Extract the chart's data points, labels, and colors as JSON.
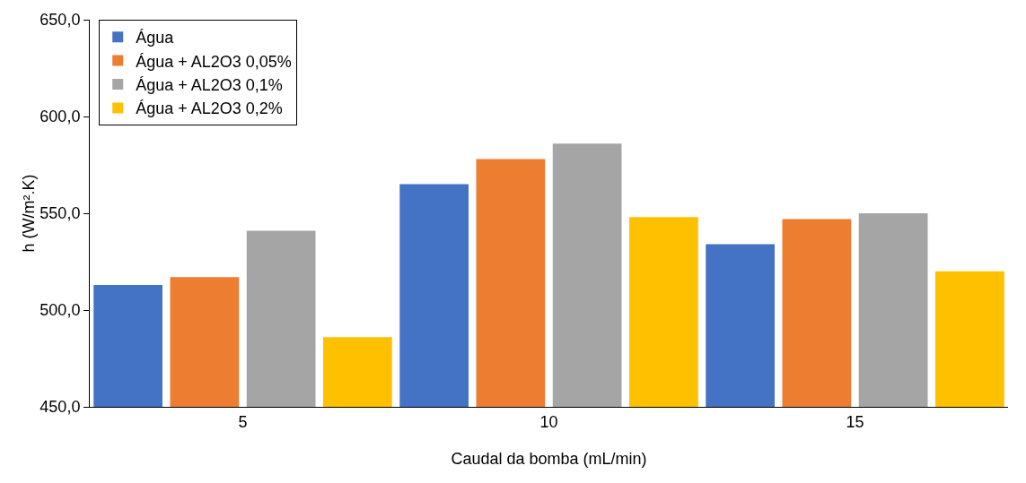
{
  "chart_data": {
    "type": "bar",
    "xlabel": "Caudal da bomba (mL/min)",
    "ylabel": "h (W/m².K)",
    "categories": [
      "5",
      "10",
      "15"
    ],
    "series": [
      {
        "name": "Água",
        "color": "#4472c4",
        "values": [
          513,
          565,
          534
        ]
      },
      {
        "name": "Água + AL2O3 0,05%",
        "color": "#ed7d31",
        "values": [
          517,
          578,
          547
        ]
      },
      {
        "name": "Água + AL2O3 0,1%",
        "color": "#a5a5a5",
        "values": [
          541,
          586,
          550
        ]
      },
      {
        "name": "Água + AL2O3 0,2%",
        "color": "#ffc000",
        "values": [
          486,
          548,
          520
        ]
      }
    ],
    "ylim": [
      450,
      650
    ],
    "yticks": [
      {
        "value": 450,
        "label": "450,0"
      },
      {
        "value": 500,
        "label": "500,0"
      },
      {
        "value": 550,
        "label": "550,0"
      },
      {
        "value": 600,
        "label": "600,0"
      },
      {
        "value": 650,
        "label": "650,0"
      }
    ],
    "grid": false,
    "legend": "top left"
  }
}
